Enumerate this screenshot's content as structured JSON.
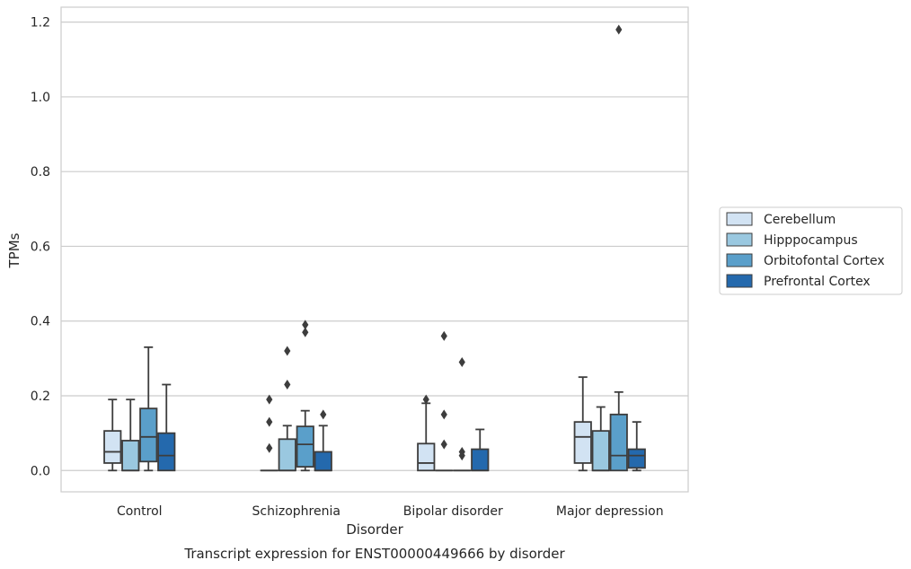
{
  "chart_data": {
    "type": "boxplot",
    "title": "Transcript expression for ENST00000449666 by disorder",
    "xlabel": "Disorder",
    "ylabel": "TPMs",
    "ylim": [
      -0.057,
      1.24
    ],
    "yticks": [
      "0.0",
      "0.2",
      "0.4",
      "0.6",
      "0.8",
      "1.0",
      "1.2"
    ],
    "ytick_values": [
      0.0,
      0.2,
      0.4,
      0.6,
      0.8,
      1.0,
      1.2
    ],
    "grid": "horizontal",
    "legend_position": "right",
    "categories": [
      "Control",
      "Schizophrenia",
      "Bipolar disorder",
      "Major depression"
    ],
    "series": [
      {
        "name": "Cerebellum",
        "color": "#d2e3f3",
        "boxes": [
          {
            "low": 0.0,
            "q1": 0.02,
            "median": 0.05,
            "q3": 0.106,
            "high": 0.19,
            "outliers": []
          },
          {
            "low": 0.0,
            "q1": 0.0,
            "median": 0.0,
            "q3": 0.0,
            "high": 0.0,
            "outliers": [
              0.06,
              0.13,
              0.19
            ]
          },
          {
            "low": 0.0,
            "q1": 0.0,
            "median": 0.02,
            "q3": 0.072,
            "high": 0.18,
            "outliers": [
              0.19
            ]
          },
          {
            "low": 0.0,
            "q1": 0.02,
            "median": 0.09,
            "q3": 0.13,
            "high": 0.25,
            "outliers": []
          }
        ]
      },
      {
        "name": "Hipppocampus",
        "color": "#9ac8e0",
        "boxes": [
          {
            "low": 0.0,
            "q1": 0.0,
            "median": 0.0,
            "q3": 0.08,
            "high": 0.19,
            "outliers": []
          },
          {
            "low": 0.0,
            "q1": 0.0,
            "median": 0.0,
            "q3": 0.084,
            "high": 0.12,
            "outliers": [
              0.23,
              0.32
            ]
          },
          {
            "low": 0.0,
            "q1": 0.0,
            "median": 0.0,
            "q3": 0.0,
            "high": 0.0,
            "outliers": [
              0.07,
              0.15,
              0.36
            ]
          },
          {
            "low": 0.0,
            "q1": 0.0,
            "median": 0.0,
            "q3": 0.106,
            "high": 0.17,
            "outliers": []
          }
        ]
      },
      {
        "name": "Orbitofontal Cortex",
        "color": "#5a9fca",
        "boxes": [
          {
            "low": 0.0,
            "q1": 0.024,
            "median": 0.09,
            "q3": 0.166,
            "high": 0.33,
            "outliers": []
          },
          {
            "low": 0.0,
            "q1": 0.01,
            "median": 0.07,
            "q3": 0.118,
            "high": 0.16,
            "outliers": [
              0.37,
              0.39
            ]
          },
          {
            "low": 0.0,
            "q1": 0.0,
            "median": 0.0,
            "q3": 0.0,
            "high": 0.0,
            "outliers": [
              0.04,
              0.05,
              0.29
            ]
          },
          {
            "low": 0.0,
            "q1": 0.0,
            "median": 0.04,
            "q3": 0.15,
            "high": 0.21,
            "outliers": [
              1.18
            ]
          }
        ]
      },
      {
        "name": "Prefrontal Cortex",
        "color": "#2469ad",
        "boxes": [
          {
            "low": 0.0,
            "q1": 0.0,
            "median": 0.04,
            "q3": 0.1,
            "high": 0.23,
            "outliers": []
          },
          {
            "low": 0.0,
            "q1": 0.0,
            "median": 0.0,
            "q3": 0.05,
            "high": 0.12,
            "outliers": [
              0.15
            ]
          },
          {
            "low": 0.0,
            "q1": 0.0,
            "median": 0.0,
            "q3": 0.057,
            "high": 0.11,
            "outliers": []
          },
          {
            "low": 0.0,
            "q1": 0.007,
            "median": 0.04,
            "q3": 0.057,
            "high": 0.13,
            "outliers": []
          }
        ]
      }
    ]
  }
}
